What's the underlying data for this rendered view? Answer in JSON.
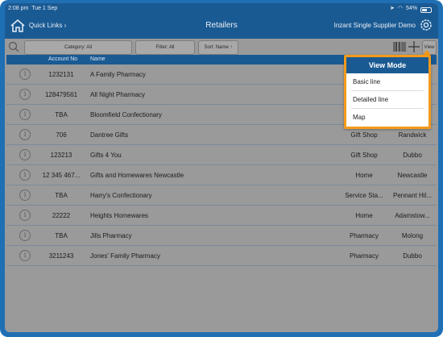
{
  "status": {
    "time": "2:08 pm",
    "date": "Tue 1 Sep",
    "battery": "54%"
  },
  "nav": {
    "quick_links": "Quick Links ›",
    "title": "Retailers",
    "company": "Inzant Single Supplier Demo"
  },
  "toolbar": {
    "category": "Category: All",
    "filter": "Filter: All",
    "sort": "Sort: Name ↑",
    "view": "View"
  },
  "table": {
    "headers": {
      "account": "Account No",
      "name": "Name"
    },
    "rows": [
      {
        "account": "1232131",
        "name": "A Family Pharmacy",
        "category": "",
        "town": ""
      },
      {
        "account": "128479561",
        "name": "All Night Pharmacy",
        "category": "",
        "town": ""
      },
      {
        "account": "TBA",
        "name": "Bloomfield Confectionary",
        "category": "",
        "town": ""
      },
      {
        "account": "706",
        "name": "Dantree Gifts",
        "category": "Gift Shop",
        "town": "Randwick"
      },
      {
        "account": "123213",
        "name": "Gifts 4 You",
        "category": "Gift Shop",
        "town": "Dubbo"
      },
      {
        "account": "12 345 467...",
        "name": "Gifts and Homewares Newcastle",
        "category": "Home",
        "town": "Newcastle"
      },
      {
        "account": "TBA",
        "name": "Harry's Confectionary",
        "category": "Service Sta...",
        "town": "Pennant Hil..."
      },
      {
        "account": "22222",
        "name": "Heights Homewares",
        "category": "Home",
        "town": "Adamstow..."
      },
      {
        "account": "TBA",
        "name": "Jills Pharmacy",
        "category": "Pharmacy",
        "town": "Molong"
      },
      {
        "account": "3211243",
        "name": "Jones' Family Pharmacy",
        "category": "Pharmacy",
        "town": "Dubbo"
      }
    ]
  },
  "view_mode": {
    "title": "View Mode",
    "options": [
      "Basic line",
      "Detailed line",
      "Map"
    ]
  },
  "colors": {
    "accent": "#1a5a93",
    "highlight": "#f39a1b",
    "overlay": "#9a9a9a"
  }
}
